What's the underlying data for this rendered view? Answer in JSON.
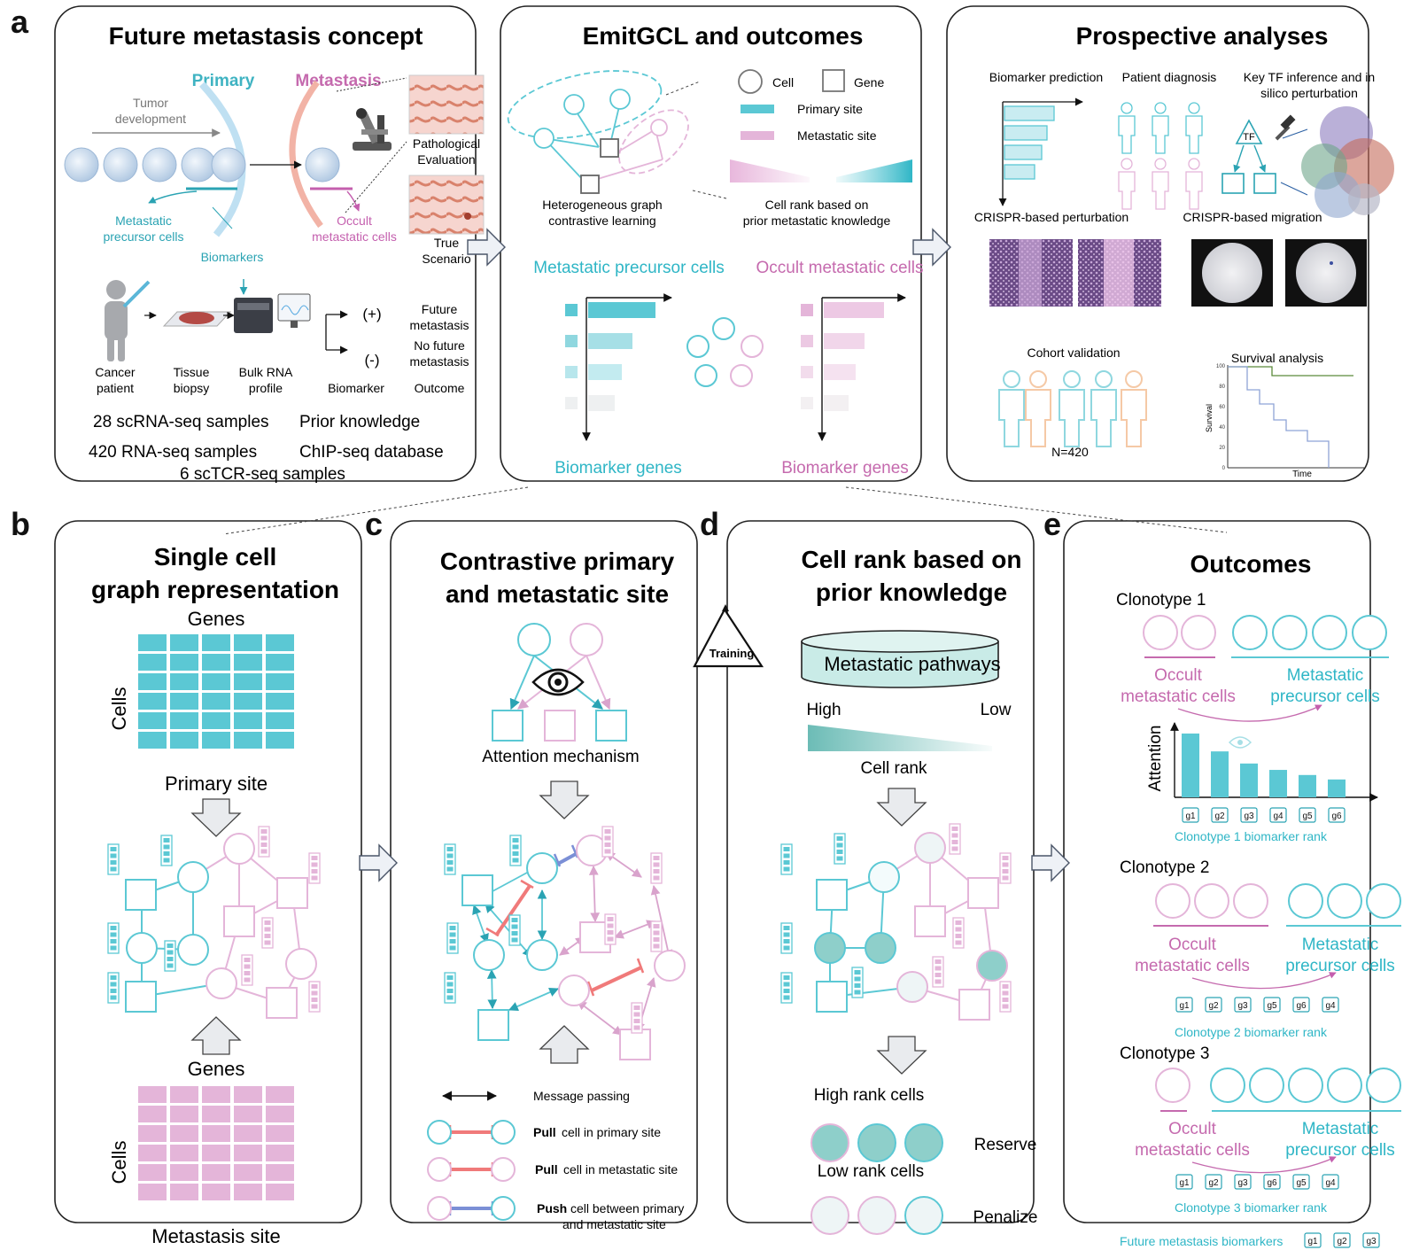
{
  "colors": {
    "primary": "#4fc3d0",
    "primary_fill": "#5bc8d4",
    "metastasis": "#d98ac4",
    "metastasis_fill": "#e4b5d9",
    "rank_fill": "#8ecfca",
    "push": "#7b8fd6",
    "pull": "#f07a7a",
    "outline": "#222222"
  },
  "letters": {
    "a": "a",
    "b": "b",
    "c": "c",
    "d": "d",
    "e": "e"
  },
  "panel_a1": {
    "title": "Future metastasis concept",
    "primary": "Primary",
    "metastasis": "Metastasis",
    "tumor_dev_1": "Tumor",
    "tumor_dev_2": "development",
    "pathological_1": "Pathological",
    "pathological_2": "Evaluation",
    "true_1": "True",
    "true_2": "Scenario",
    "mpc_1": "Metastatic",
    "mpc_2": "precursor cells",
    "occult_1": "Occult",
    "occult_2": "metastatic  cells",
    "biomarkers": "Biomarkers",
    "plus": "(+)",
    "minus": "(-)",
    "future_1": "Future",
    "future_2": "metastasis",
    "nofuture_1": "No future",
    "nofuture_2": "metastasis",
    "cancer_1": "Cancer",
    "cancer_2": "patient",
    "tissue_1": "Tissue",
    "tissue_2": "biopsy",
    "bulk_1": "Bulk RNA",
    "bulk_2": "profile",
    "biomarker": "Biomarker",
    "outcome": "Outcome",
    "sc_samples": "28 scRNA-seq samples",
    "prior": "Prior knowledge",
    "rna_samples": "420 RNA-seq samples",
    "chip": "ChIP-seq database",
    "tcr_samples": "6 scTCR-seq samples"
  },
  "panel_a2": {
    "title": "EmitGCL and outcomes",
    "cell": "Cell",
    "gene": "Gene",
    "primary_site": "Primary site",
    "metastatic_site": "Metastatic site",
    "hgcl_1": "Heterogeneous  graph",
    "hgcl_2": "contrastive  learning",
    "rank_1": "Cell rank based on",
    "rank_2": "prior metastatic knowledge",
    "mpc": "Metastatic precursor cells",
    "omc": "Occult metastatic cells",
    "bio_left": "Biomarker genes",
    "bio_right": "Biomarker genes"
  },
  "panel_a3": {
    "title": "Prospective analyses",
    "biomarker_pred": "Biomarker  prediction",
    "patient_diag": "Patient  diagnosis",
    "key_tf_1": "Key TF inference and in",
    "key_tf_2": "silico perturbation",
    "tf": "TF",
    "crispr_pert": "CRISPR-based  perturbation",
    "crispr_mig": "CRISPR-based  migration",
    "cohort": "Cohort validation",
    "n": "N=420",
    "survival": "Survival  analysis",
    "surv_ylabel": "Survival",
    "surv_xlabel": "Time",
    "surv_ticks": [
      "100",
      "80",
      "60",
      "40",
      "20",
      "0"
    ]
  },
  "panel_b": {
    "title_1": "Single cell",
    "title_2": "graph representation",
    "genes_top": "Genes",
    "cells_top": "Cells",
    "primary_site": "Primary site",
    "genes_bottom": "Genes",
    "cells_bottom": "Cells",
    "metastasis_site": "Metastasis site"
  },
  "panel_c": {
    "title_1": "Contrastive primary",
    "title_2": "and metastatic site",
    "attention": "Attention mechanism",
    "training": "Training",
    "msg": "Message passing",
    "pull": "Pull",
    "pull1_rest": "cell in primary site",
    "pull2_rest": "cell in metastatic  site",
    "push": "Push",
    "push_rest": "cell between  primary",
    "push_rest_2": "and metastatic  site"
  },
  "panel_d": {
    "title_1": "Cell rank based on",
    "title_2": "prior knowledge",
    "pathways": "Metastatic pathways",
    "high": "High",
    "low": "Low",
    "cell_rank": "Cell rank",
    "high_rank": "High rank cells",
    "low_rank": "Low  rank cells",
    "reserve": "Reserve",
    "penalize": "Penalize"
  },
  "panel_e": {
    "title": "Outcomes",
    "clono1": "Clonotype  1",
    "clono2": "Clonotype  2",
    "clono3": "Clonotype  3",
    "occult_1": "Occult",
    "occult_2": "metastatic cells",
    "meta_1": "Metastatic",
    "meta_2": "precursor cells",
    "attention": "Attention",
    "rank1": "Clonotype  1 biomarker rank",
    "rank2": "Clonotype  2 biomarker rank",
    "rank3": "Clonotype  3 biomarker rank",
    "future": "Future metastasis  biomarkers",
    "genes1": [
      "g1",
      "g2",
      "g3",
      "g4",
      "g5",
      "g6"
    ],
    "genes2": [
      "g1",
      "g2",
      "g3",
      "g5",
      "g6",
      "g4"
    ],
    "genes3": [
      "g1",
      "g2",
      "g3",
      "g6",
      "g5",
      "g4"
    ],
    "future_genes": [
      "g1",
      "g2",
      "g3"
    ]
  }
}
